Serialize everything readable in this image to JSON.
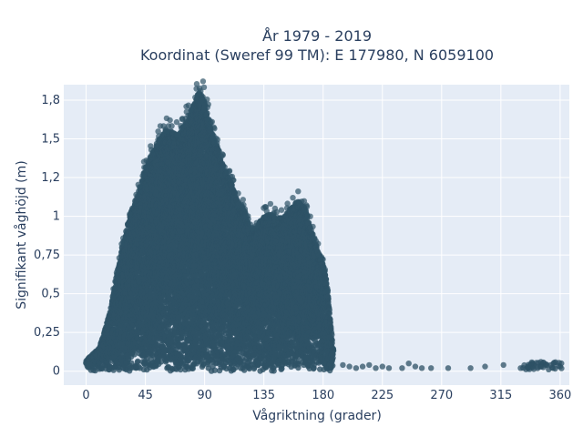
{
  "chart_data": {
    "type": "scatter",
    "title_line1": "År 1979 - 2019",
    "title_line2": "Koordinat (Sweref 99 TM): E 177980, N 6059100",
    "xlabel": "Vågriktning (grader)",
    "ylabel": "Signifikant våghöjd (m)",
    "xlim": [
      -17,
      367
    ],
    "ylim": [
      -0.09,
      1.85
    ],
    "x_ticks": [
      0,
      45,
      90,
      135,
      180,
      225,
      270,
      315,
      360
    ],
    "x_tick_labels": [
      "0",
      "45",
      "90",
      "135",
      "180",
      "225",
      "270",
      "315",
      "360"
    ],
    "y_ticks": [
      0,
      0.25,
      0.5,
      0.75,
      1,
      1.25,
      1.5,
      1.75
    ],
    "y_tick_labels": [
      "0",
      "0,25",
      "0,5",
      "0,75",
      "1",
      "1,2",
      "1,5",
      "1,8"
    ],
    "grid": true,
    "series": [
      {
        "name": "",
        "color": "#2e5266",
        "envelope": [
          [
            0,
            0.07
          ],
          [
            10,
            0.15
          ],
          [
            18,
            0.38
          ],
          [
            25,
            0.7
          ],
          [
            30,
            0.9
          ],
          [
            35,
            1.05
          ],
          [
            40,
            1.15
          ],
          [
            45,
            1.32
          ],
          [
            50,
            1.4
          ],
          [
            55,
            1.5
          ],
          [
            60,
            1.55
          ],
          [
            65,
            1.55
          ],
          [
            70,
            1.52
          ],
          [
            75,
            1.6
          ],
          [
            80,
            1.68
          ],
          [
            85,
            1.8
          ],
          [
            88,
            1.78
          ],
          [
            90,
            1.75
          ],
          [
            95,
            1.55
          ],
          [
            100,
            1.45
          ],
          [
            105,
            1.3
          ],
          [
            110,
            1.22
          ],
          [
            115,
            1.1
          ],
          [
            120,
            1.05
          ],
          [
            125,
            0.9
          ],
          [
            130,
            0.95
          ],
          [
            135,
            1.0
          ],
          [
            140,
            1.02
          ],
          [
            145,
            0.98
          ],
          [
            150,
            1.0
          ],
          [
            155,
            1.05
          ],
          [
            160,
            1.1
          ],
          [
            165,
            1.08
          ],
          [
            170,
            0.95
          ],
          [
            175,
            0.8
          ],
          [
            180,
            0.7
          ],
          [
            183,
            0.55
          ],
          [
            186,
            0.3
          ],
          [
            188,
            0.1
          ]
        ],
        "sparse_points": [
          [
            195,
            0.04
          ],
          [
            200,
            0.03
          ],
          [
            205,
            0.02
          ],
          [
            210,
            0.03
          ],
          [
            215,
            0.04
          ],
          [
            220,
            0.02
          ],
          [
            225,
            0.03
          ],
          [
            230,
            0.02
          ],
          [
            240,
            0.02
          ],
          [
            245,
            0.05
          ],
          [
            250,
            0.03
          ],
          [
            255,
            0.02
          ],
          [
            262,
            0.02
          ],
          [
            275,
            0.02
          ],
          [
            292,
            0.02
          ],
          [
            303,
            0.03
          ],
          [
            317,
            0.04
          ],
          [
            330,
            0.02
          ],
          [
            340,
            0.04
          ],
          [
            345,
            0.03
          ],
          [
            350,
            0.04
          ],
          [
            355,
            0.05
          ],
          [
            360,
            0.03
          ]
        ]
      }
    ]
  }
}
